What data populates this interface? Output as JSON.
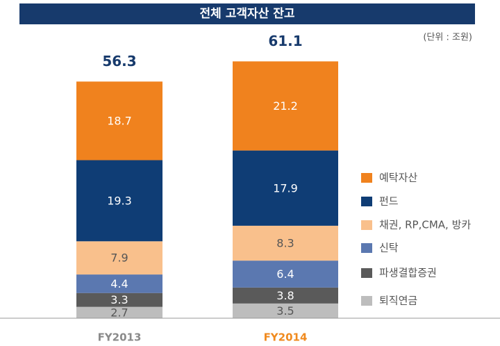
{
  "chart_data": {
    "type": "stacked_bar",
    "title": "전체 고객자산 잔고",
    "unit": "(단위 : 조원)",
    "categories": [
      "FY2013",
      "FY2014"
    ],
    "category_colors": [
      "#8a8a8a",
      "#f08a1e"
    ],
    "totals": [
      56.3,
      61.1
    ],
    "series": [
      {
        "name": "퇴직연금",
        "color": "#bdbdbd",
        "label_color": "#555555",
        "values": [
          2.7,
          3.5
        ]
      },
      {
        "name": "파생결합증권",
        "color": "#5a5a5a",
        "label_color": "#ffffff",
        "values": [
          3.3,
          3.8
        ]
      },
      {
        "name": "신탁",
        "color": "#5b78b0",
        "label_color": "#ffffff",
        "values": [
          4.4,
          6.4
        ]
      },
      {
        "name": "채권, RP,CMA, 방카",
        "color": "#f9c08c",
        "label_color": "#555555",
        "values": [
          7.9,
          8.3
        ]
      },
      {
        "name": "펀드",
        "color": "#0f3d75",
        "label_color": "#ffffff",
        "values": [
          19.3,
          17.9
        ]
      },
      {
        "name": "예탁자산",
        "color": "#f0821e",
        "label_color": "#ffffff",
        "values": [
          18.7,
          21.2
        ]
      }
    ]
  }
}
